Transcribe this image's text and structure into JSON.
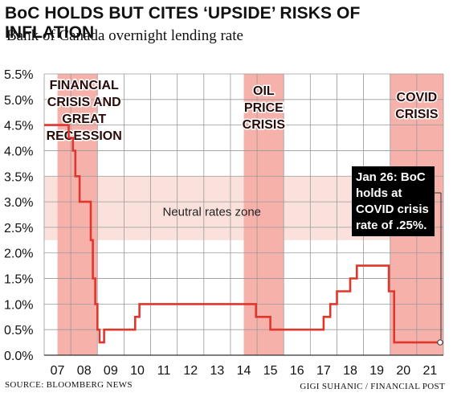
{
  "header": {
    "title": "BoC HOLDS BUT CITES ‘UPSIDE’ RISKS OF INFLATION",
    "subtitle": "Bank of Canada overnight lending rate"
  },
  "footer": {
    "source": "SOURCE: BLOOMBERG NEWS",
    "credit": "GIGI SUHANIC / FINANCIAL POST"
  },
  "colors": {
    "line": "#e0362c",
    "shade": "#f6b1aa",
    "band": "#fbe1dc",
    "grid": "#9a9a9a",
    "callout_bg": "#000000",
    "callout_text": "#ffffff"
  },
  "chart_data": {
    "type": "line",
    "title": "BoC HOLDS BUT CITES ‘UPSIDE’ RISKS OF INFLATION",
    "subtitle": "Bank of Canada overnight lending rate",
    "xlabel": "",
    "ylabel": "",
    "xlim": [
      2007,
      2022
    ],
    "ylim": [
      0,
      5.5
    ],
    "grid": true,
    "x_tick_labels": [
      "07",
      "08",
      "09",
      "10",
      "11",
      "12",
      "13",
      "14",
      "15",
      "16",
      "17",
      "18",
      "19",
      "20",
      "21"
    ],
    "x_tick_values": [
      2007,
      2008,
      2009,
      2010,
      2011,
      2012,
      2013,
      2014,
      2015,
      2016,
      2017,
      2018,
      2019,
      2020,
      2021
    ],
    "y_tick_labels": [
      "0.0%",
      "0.5%",
      "1.0%",
      "1.5%",
      "2.0%",
      "2.5%",
      "3.0%",
      "3.5%",
      "4.0%",
      "4.5%",
      "5.0%",
      "5.5%"
    ],
    "y_tick_values": [
      0,
      0.5,
      1.0,
      1.5,
      2.0,
      2.5,
      3.0,
      3.5,
      4.0,
      4.5,
      5.0,
      5.5
    ],
    "series": [
      {
        "x": [
          2007.0,
          2007.92,
          2007.92,
          2008.08,
          2008.08,
          2008.17,
          2008.17,
          2008.33,
          2008.33,
          2008.75,
          2008.75,
          2008.83,
          2008.83,
          2008.92,
          2008.92,
          2009.0,
          2009.0,
          2009.08,
          2009.08,
          2009.25,
          2009.25,
          2010.42,
          2010.42,
          2010.58,
          2010.58,
          2010.67,
          2010.67,
          2014.96,
          2014.96,
          2015.5,
          2015.5,
          2017.5,
          2017.5,
          2017.75,
          2017.75,
          2018.0,
          2018.0,
          2018.5,
          2018.5,
          2018.75,
          2018.75,
          2019.95,
          2019.95,
          2020.15,
          2020.15,
          2020.22,
          2020.22,
          2022.0
        ],
        "y": [
          4.5,
          4.5,
          4.25,
          4.25,
          4.0,
          4.0,
          3.5,
          3.5,
          3.0,
          3.0,
          2.25,
          2.25,
          1.5,
          1.5,
          1.0,
          1.0,
          0.5,
          0.5,
          0.25,
          0.25,
          0.5,
          0.5,
          0.75,
          0.75,
          1.0,
          1.0,
          1.0,
          1.0,
          0.75,
          0.75,
          0.5,
          0.5,
          0.75,
          0.75,
          1.0,
          1.0,
          1.25,
          1.25,
          1.5,
          1.5,
          1.75,
          1.75,
          1.25,
          1.25,
          0.25,
          0.25,
          0.25,
          0.25
        ]
      }
    ],
    "shaded_periods": [
      {
        "label": "FINANCIAL CRISIS AND GREAT RECESSION",
        "x_start": 2007.5,
        "x_end": 2009.0
      },
      {
        "label": "OIL PRICE CRISIS",
        "x_start": 2014.5,
        "x_end": 2016.0
      },
      {
        "label": "COVID CRISIS",
        "x_start": 2020.0,
        "x_end": 2022.0
      }
    ],
    "band": {
      "label": "Neutral rates zone",
      "y_start": 2.25,
      "y_end": 3.5
    },
    "annotation": {
      "text": "Jan 26: BoC holds at COVID crisis rate of .25%.",
      "x": 2022.0,
      "y": 0.25
    }
  }
}
